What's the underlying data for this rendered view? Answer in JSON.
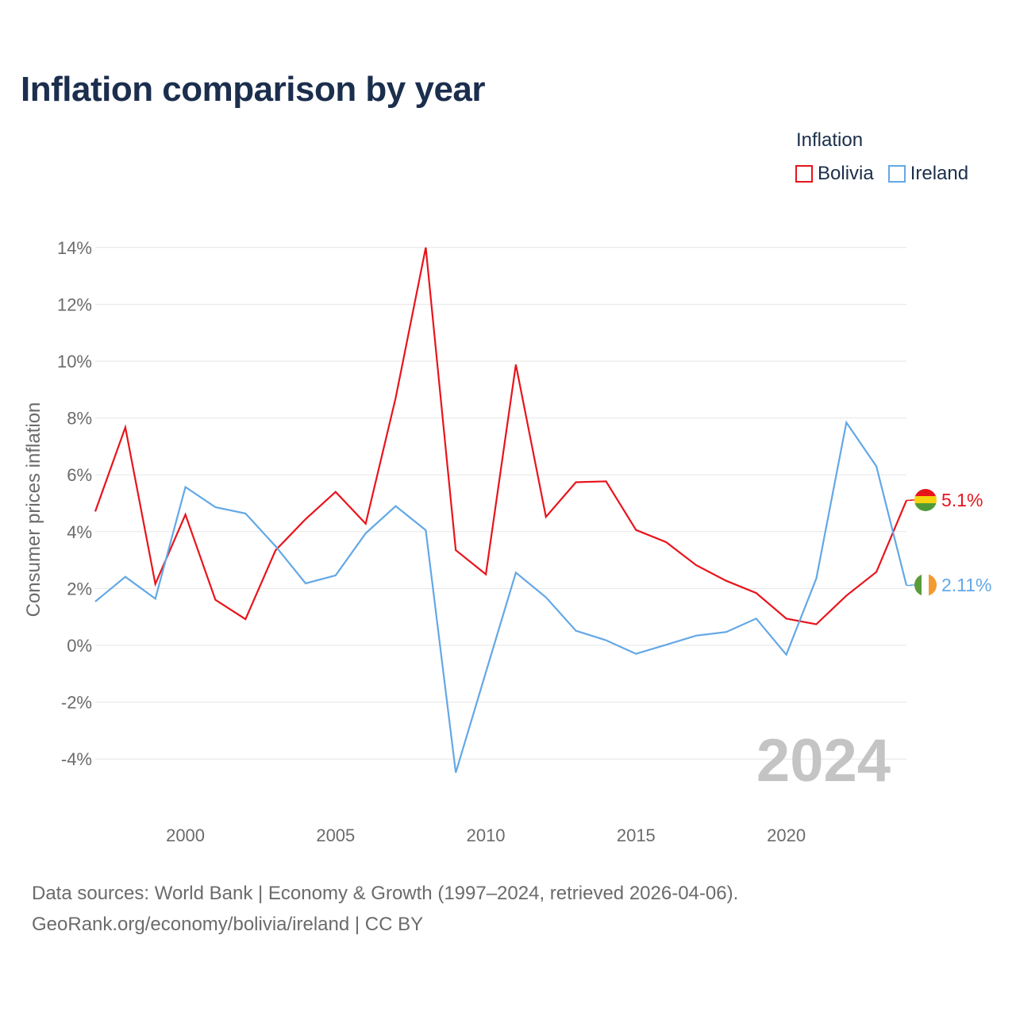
{
  "title": "Inflation comparison by year",
  "legend": {
    "title": "Inflation",
    "items": [
      {
        "label": "Bolivia",
        "color": "#e8141c"
      },
      {
        "label": "Ireland",
        "color": "#63a8e6"
      }
    ]
  },
  "watermark_year": "2024",
  "footer": {
    "line1": "Data sources: World Bank | Economy & Growth (1997–2024, retrieved 2026-04-06).",
    "line2": "GeoRank.org/economy/bolivia/ireland | CC BY"
  },
  "chart_data": {
    "type": "line",
    "title": "Inflation comparison by year",
    "xlabel": "",
    "ylabel": "Consumer prices inflation",
    "xlim": [
      1997,
      2024
    ],
    "ylim": [
      -5,
      14
    ],
    "y_ticks": [
      14,
      12,
      10,
      8,
      6,
      4,
      2,
      0,
      -2,
      -4
    ],
    "y_tick_labels": [
      "14%",
      "12%",
      "10%",
      "8%",
      "6%",
      "4%",
      "2%",
      "0%",
      "-2%",
      "-4%"
    ],
    "x_ticks": [
      2000,
      2005,
      2010,
      2015,
      2020
    ],
    "x_tick_labels": [
      "2000",
      "2005",
      "2010",
      "2015",
      "2020"
    ],
    "grid": "horizontal",
    "legend_position": "top-right",
    "x": [
      1997,
      1998,
      1999,
      2000,
      2001,
      2002,
      2003,
      2004,
      2005,
      2006,
      2007,
      2008,
      2009,
      2010,
      2011,
      2012,
      2013,
      2014,
      2015,
      2016,
      2017,
      2018,
      2019,
      2020,
      2021,
      2022,
      2023,
      2024
    ],
    "series": [
      {
        "name": "Bolivia",
        "color": "#e8141c",
        "values": [
          4.71,
          7.67,
          2.16,
          4.6,
          1.6,
          0.92,
          3.34,
          4.44,
          5.4,
          4.28,
          8.71,
          14.0,
          3.35,
          2.5,
          9.88,
          4.52,
          5.74,
          5.77,
          4.06,
          3.63,
          2.82,
          2.27,
          1.84,
          0.94,
          0.74,
          1.75,
          2.58,
          5.1
        ],
        "end_label": "5.1%",
        "flag": "bolivia"
      },
      {
        "name": "Ireland",
        "color": "#63a8e6",
        "values": [
          1.54,
          2.41,
          1.64,
          5.57,
          4.86,
          4.64,
          3.49,
          2.18,
          2.46,
          3.94,
          4.9,
          4.05,
          -4.48,
          -0.95,
          2.56,
          1.69,
          0.51,
          0.18,
          -0.3,
          0.02,
          0.34,
          0.47,
          0.94,
          -0.33,
          2.35,
          7.84,
          6.3,
          2.11
        ],
        "end_label": "2.11%",
        "flag": "ireland"
      }
    ]
  }
}
